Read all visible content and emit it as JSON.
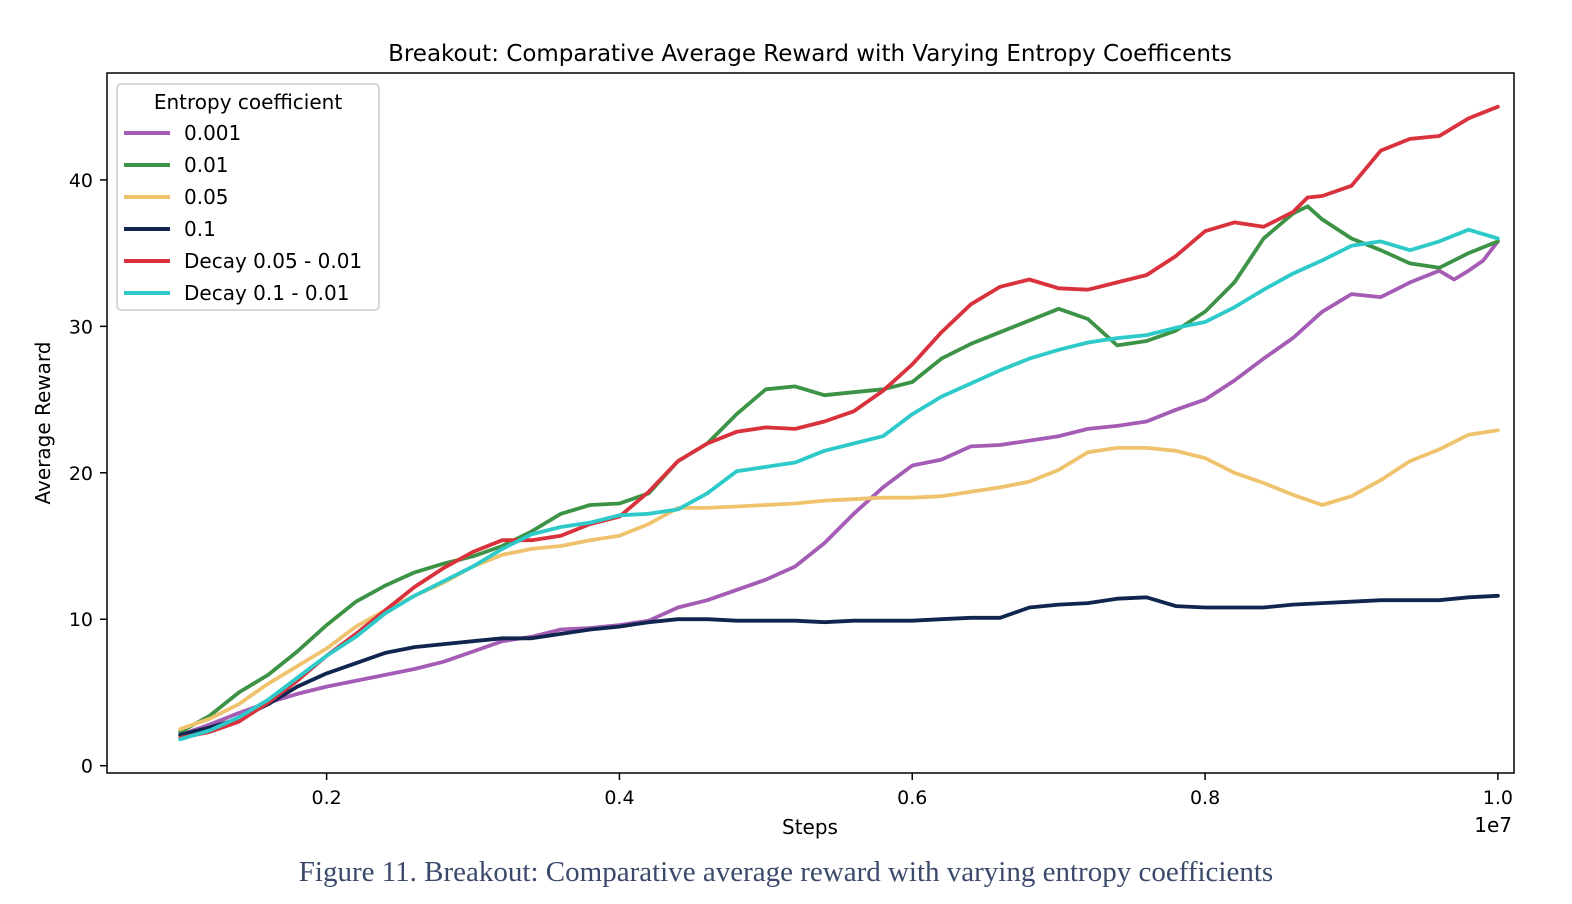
{
  "figure_caption": "Figure 11. Breakout: Comparative average reward with varying entropy coefficients",
  "chart_data": {
    "type": "line",
    "title": "Breakout: Comparative Average Reward with Varying Entropy Coefficents",
    "xlabel": "Steps",
    "ylabel": "Average Reward",
    "x_offset_label": "1e7",
    "xlim": [
      0.05,
      1.011
    ],
    "ylim": [
      -0.5,
      47.3
    ],
    "xticks": [
      0.2,
      0.4,
      0.6,
      0.8,
      1.0
    ],
    "xtick_labels": [
      "0.2",
      "0.4",
      "0.6",
      "0.8",
      "1.0"
    ],
    "yticks": [
      0,
      10,
      20,
      30,
      40
    ],
    "ytick_labels": [
      "0",
      "10",
      "20",
      "30",
      "40"
    ],
    "grid": false,
    "legend_title": "Entropy coefficient",
    "legend_position": "top-left",
    "series": [
      {
        "name": "0.001",
        "color": "#a45cb5",
        "points": [
          [
            0.1,
            2.1
          ],
          [
            0.12,
            2.8
          ],
          [
            0.14,
            3.6
          ],
          [
            0.16,
            4.3
          ],
          [
            0.18,
            4.9
          ],
          [
            0.2,
            5.4
          ],
          [
            0.22,
            5.8
          ],
          [
            0.24,
            6.2
          ],
          [
            0.26,
            6.6
          ],
          [
            0.28,
            7.1
          ],
          [
            0.3,
            7.8
          ],
          [
            0.32,
            8.5
          ],
          [
            0.34,
            8.8
          ],
          [
            0.36,
            9.3
          ],
          [
            0.38,
            9.4
          ],
          [
            0.4,
            9.6
          ],
          [
            0.42,
            9.9
          ],
          [
            0.44,
            10.8
          ],
          [
            0.46,
            11.3
          ],
          [
            0.48,
            12.0
          ],
          [
            0.5,
            12.7
          ],
          [
            0.52,
            13.6
          ],
          [
            0.54,
            15.2
          ],
          [
            0.56,
            17.2
          ],
          [
            0.58,
            19.0
          ],
          [
            0.6,
            20.5
          ],
          [
            0.62,
            20.9
          ],
          [
            0.64,
            21.8
          ],
          [
            0.66,
            21.9
          ],
          [
            0.68,
            22.2
          ],
          [
            0.7,
            22.5
          ],
          [
            0.72,
            23.0
          ],
          [
            0.74,
            23.2
          ],
          [
            0.76,
            23.5
          ],
          [
            0.78,
            24.3
          ],
          [
            0.8,
            25.0
          ],
          [
            0.82,
            26.3
          ],
          [
            0.84,
            27.8
          ],
          [
            0.86,
            29.2
          ],
          [
            0.88,
            31.0
          ],
          [
            0.9,
            32.2
          ],
          [
            0.92,
            32.0
          ],
          [
            0.94,
            33.0
          ],
          [
            0.96,
            33.8
          ],
          [
            0.97,
            33.2
          ],
          [
            0.98,
            33.8
          ],
          [
            0.99,
            34.5
          ],
          [
            1.0,
            35.8
          ]
        ]
      },
      {
        "name": "0.01",
        "color": "#3d9345",
        "points": [
          [
            0.1,
            2.3
          ],
          [
            0.12,
            3.4
          ],
          [
            0.14,
            5.0
          ],
          [
            0.16,
            6.2
          ],
          [
            0.18,
            7.8
          ],
          [
            0.2,
            9.6
          ],
          [
            0.22,
            11.2
          ],
          [
            0.24,
            12.3
          ],
          [
            0.26,
            13.2
          ],
          [
            0.28,
            13.8
          ],
          [
            0.3,
            14.3
          ],
          [
            0.32,
            15.0
          ],
          [
            0.34,
            16.0
          ],
          [
            0.36,
            17.2
          ],
          [
            0.38,
            17.8
          ],
          [
            0.4,
            17.9
          ],
          [
            0.42,
            18.6
          ],
          [
            0.44,
            20.8
          ],
          [
            0.46,
            22.0
          ],
          [
            0.48,
            24.0
          ],
          [
            0.5,
            25.7
          ],
          [
            0.52,
            25.9
          ],
          [
            0.54,
            25.3
          ],
          [
            0.56,
            25.5
          ],
          [
            0.58,
            25.7
          ],
          [
            0.6,
            26.2
          ],
          [
            0.62,
            27.8
          ],
          [
            0.64,
            28.8
          ],
          [
            0.66,
            29.6
          ],
          [
            0.68,
            30.4
          ],
          [
            0.7,
            31.2
          ],
          [
            0.72,
            30.5
          ],
          [
            0.74,
            28.7
          ],
          [
            0.76,
            29.0
          ],
          [
            0.78,
            29.7
          ],
          [
            0.8,
            31.0
          ],
          [
            0.82,
            33.0
          ],
          [
            0.84,
            36.0
          ],
          [
            0.86,
            37.7
          ],
          [
            0.87,
            38.2
          ],
          [
            0.88,
            37.3
          ],
          [
            0.9,
            36.0
          ],
          [
            0.92,
            35.2
          ],
          [
            0.94,
            34.3
          ],
          [
            0.96,
            34.0
          ],
          [
            0.98,
            35.0
          ],
          [
            1.0,
            35.8
          ]
        ]
      },
      {
        "name": "0.05",
        "color": "#efc36d",
        "points": [
          [
            0.1,
            2.5
          ],
          [
            0.12,
            3.2
          ],
          [
            0.14,
            4.2
          ],
          [
            0.16,
            5.6
          ],
          [
            0.18,
            6.8
          ],
          [
            0.2,
            8.0
          ],
          [
            0.22,
            9.5
          ],
          [
            0.24,
            10.6
          ],
          [
            0.26,
            11.6
          ],
          [
            0.28,
            12.5
          ],
          [
            0.3,
            13.6
          ],
          [
            0.32,
            14.4
          ],
          [
            0.34,
            14.8
          ],
          [
            0.36,
            15.0
          ],
          [
            0.38,
            15.4
          ],
          [
            0.4,
            15.7
          ],
          [
            0.42,
            16.5
          ],
          [
            0.44,
            17.6
          ],
          [
            0.46,
            17.6
          ],
          [
            0.48,
            17.7
          ],
          [
            0.5,
            17.8
          ],
          [
            0.52,
            17.9
          ],
          [
            0.54,
            18.1
          ],
          [
            0.56,
            18.2
          ],
          [
            0.58,
            18.3
          ],
          [
            0.6,
            18.3
          ],
          [
            0.62,
            18.4
          ],
          [
            0.64,
            18.7
          ],
          [
            0.66,
            19.0
          ],
          [
            0.68,
            19.4
          ],
          [
            0.7,
            20.2
          ],
          [
            0.72,
            21.4
          ],
          [
            0.74,
            21.7
          ],
          [
            0.76,
            21.7
          ],
          [
            0.78,
            21.5
          ],
          [
            0.8,
            21.0
          ],
          [
            0.82,
            20.0
          ],
          [
            0.84,
            19.3
          ],
          [
            0.86,
            18.5
          ],
          [
            0.88,
            17.8
          ],
          [
            0.9,
            18.4
          ],
          [
            0.92,
            19.5
          ],
          [
            0.94,
            20.8
          ],
          [
            0.96,
            21.6
          ],
          [
            0.98,
            22.6
          ],
          [
            1.0,
            22.9
          ]
        ]
      },
      {
        "name": "0.1",
        "color": "#102650",
        "points": [
          [
            0.1,
            2.1
          ],
          [
            0.12,
            2.6
          ],
          [
            0.14,
            3.2
          ],
          [
            0.16,
            4.2
          ],
          [
            0.18,
            5.4
          ],
          [
            0.2,
            6.3
          ],
          [
            0.22,
            7.0
          ],
          [
            0.24,
            7.7
          ],
          [
            0.26,
            8.1
          ],
          [
            0.28,
            8.3
          ],
          [
            0.3,
            8.5
          ],
          [
            0.32,
            8.7
          ],
          [
            0.34,
            8.7
          ],
          [
            0.36,
            9.0
          ],
          [
            0.38,
            9.3
          ],
          [
            0.4,
            9.5
          ],
          [
            0.42,
            9.8
          ],
          [
            0.44,
            10.0
          ],
          [
            0.46,
            10.0
          ],
          [
            0.48,
            9.9
          ],
          [
            0.5,
            9.9
          ],
          [
            0.52,
            9.9
          ],
          [
            0.54,
            9.8
          ],
          [
            0.56,
            9.9
          ],
          [
            0.58,
            9.9
          ],
          [
            0.6,
            9.9
          ],
          [
            0.62,
            10.0
          ],
          [
            0.64,
            10.1
          ],
          [
            0.66,
            10.1
          ],
          [
            0.68,
            10.8
          ],
          [
            0.7,
            11.0
          ],
          [
            0.72,
            11.1
          ],
          [
            0.74,
            11.4
          ],
          [
            0.76,
            11.5
          ],
          [
            0.78,
            10.9
          ],
          [
            0.8,
            10.8
          ],
          [
            0.82,
            10.8
          ],
          [
            0.84,
            10.8
          ],
          [
            0.86,
            11.0
          ],
          [
            0.88,
            11.1
          ],
          [
            0.9,
            11.2
          ],
          [
            0.92,
            11.3
          ],
          [
            0.94,
            11.3
          ],
          [
            0.96,
            11.3
          ],
          [
            0.98,
            11.5
          ],
          [
            1.0,
            11.6
          ]
        ]
      },
      {
        "name": "Decay 0.05 - 0.01",
        "color": "#d9323c",
        "points": [
          [
            0.1,
            1.9
          ],
          [
            0.12,
            2.3
          ],
          [
            0.14,
            3.0
          ],
          [
            0.16,
            4.3
          ],
          [
            0.18,
            5.8
          ],
          [
            0.2,
            7.5
          ],
          [
            0.22,
            9.0
          ],
          [
            0.24,
            10.6
          ],
          [
            0.26,
            12.2
          ],
          [
            0.28,
            13.5
          ],
          [
            0.3,
            14.6
          ],
          [
            0.32,
            15.4
          ],
          [
            0.34,
            15.4
          ],
          [
            0.36,
            15.7
          ],
          [
            0.38,
            16.5
          ],
          [
            0.4,
            17.0
          ],
          [
            0.42,
            18.7
          ],
          [
            0.44,
            20.8
          ],
          [
            0.46,
            22.0
          ],
          [
            0.48,
            22.8
          ],
          [
            0.5,
            23.1
          ],
          [
            0.52,
            23.0
          ],
          [
            0.54,
            23.5
          ],
          [
            0.56,
            24.2
          ],
          [
            0.58,
            25.6
          ],
          [
            0.6,
            27.4
          ],
          [
            0.62,
            29.6
          ],
          [
            0.64,
            31.5
          ],
          [
            0.66,
            32.7
          ],
          [
            0.68,
            33.2
          ],
          [
            0.7,
            32.6
          ],
          [
            0.72,
            32.5
          ],
          [
            0.74,
            33.0
          ],
          [
            0.76,
            33.5
          ],
          [
            0.78,
            34.8
          ],
          [
            0.8,
            36.5
          ],
          [
            0.82,
            37.1
          ],
          [
            0.84,
            36.8
          ],
          [
            0.86,
            37.8
          ],
          [
            0.87,
            38.8
          ],
          [
            0.88,
            38.9
          ],
          [
            0.9,
            39.6
          ],
          [
            0.92,
            42.0
          ],
          [
            0.94,
            42.8
          ],
          [
            0.96,
            43.0
          ],
          [
            0.98,
            44.2
          ],
          [
            1.0,
            45.0
          ]
        ]
      },
      {
        "name": "Decay 0.1 - 0.01",
        "color": "#2ecaca",
        "points": [
          [
            0.1,
            1.8
          ],
          [
            0.12,
            2.4
          ],
          [
            0.14,
            3.3
          ],
          [
            0.16,
            4.5
          ],
          [
            0.18,
            6.0
          ],
          [
            0.2,
            7.5
          ],
          [
            0.22,
            8.8
          ],
          [
            0.24,
            10.4
          ],
          [
            0.26,
            11.6
          ],
          [
            0.28,
            12.6
          ],
          [
            0.3,
            13.6
          ],
          [
            0.32,
            14.8
          ],
          [
            0.34,
            15.8
          ],
          [
            0.36,
            16.3
          ],
          [
            0.38,
            16.6
          ],
          [
            0.4,
            17.1
          ],
          [
            0.42,
            17.2
          ],
          [
            0.44,
            17.5
          ],
          [
            0.46,
            18.6
          ],
          [
            0.48,
            20.1
          ],
          [
            0.5,
            20.4
          ],
          [
            0.52,
            20.7
          ],
          [
            0.54,
            21.5
          ],
          [
            0.56,
            22.0
          ],
          [
            0.58,
            22.5
          ],
          [
            0.6,
            24.0
          ],
          [
            0.62,
            25.2
          ],
          [
            0.64,
            26.1
          ],
          [
            0.66,
            27.0
          ],
          [
            0.68,
            27.8
          ],
          [
            0.7,
            28.4
          ],
          [
            0.72,
            28.9
          ],
          [
            0.74,
            29.2
          ],
          [
            0.76,
            29.4
          ],
          [
            0.78,
            29.9
          ],
          [
            0.8,
            30.3
          ],
          [
            0.82,
            31.3
          ],
          [
            0.84,
            32.5
          ],
          [
            0.86,
            33.6
          ],
          [
            0.88,
            34.5
          ],
          [
            0.9,
            35.5
          ],
          [
            0.92,
            35.8
          ],
          [
            0.94,
            35.2
          ],
          [
            0.96,
            35.8
          ],
          [
            0.98,
            36.6
          ],
          [
            1.0,
            36.0
          ]
        ]
      }
    ]
  }
}
